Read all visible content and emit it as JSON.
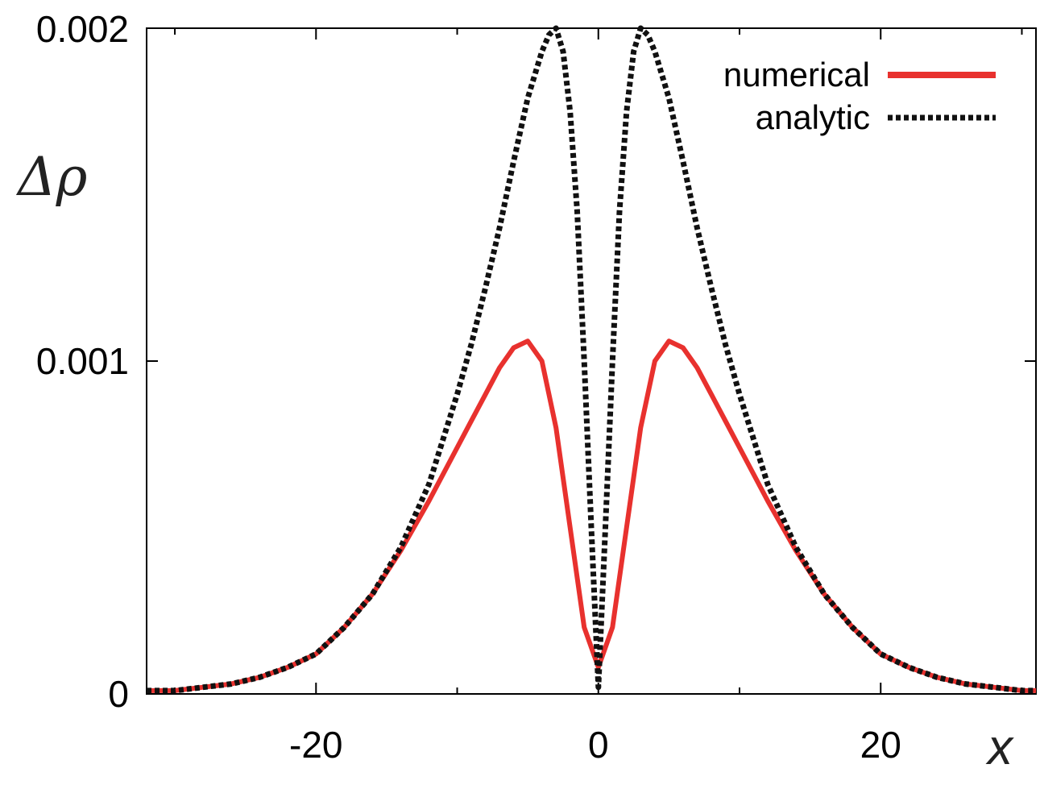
{
  "chart_data": {
    "type": "line",
    "xlabel": "x",
    "ylabel": "Δρ",
    "xlim": [
      -32,
      31
    ],
    "ylim": [
      0,
      0.002
    ],
    "xticks": [
      -20,
      0,
      20
    ],
    "xtick_labels": [
      "-20",
      "0",
      "20"
    ],
    "yticks": [
      0,
      0.001,
      0.002
    ],
    "ytick_labels": [
      "0",
      "0.001",
      "0.002"
    ],
    "grid": false,
    "legend_position": "top-right",
    "colors": {
      "numerical": "#e8312e",
      "analytic": "#111111"
    },
    "series": [
      {
        "name": "numerical",
        "style": "solid",
        "x": [
          -32,
          -30,
          -28,
          -26,
          -24,
          -22,
          -20,
          -18,
          -16,
          -14,
          -12,
          -10,
          -9,
          -8,
          -7,
          -6,
          -5,
          -4,
          -3,
          -2,
          -1,
          0,
          1,
          2,
          3,
          4,
          5,
          6,
          7,
          8,
          9,
          10,
          12,
          14,
          16,
          18,
          20,
          22,
          24,
          26,
          28,
          30,
          31
        ],
        "y": [
          1e-05,
          1e-05,
          2e-05,
          3e-05,
          5e-05,
          8e-05,
          0.00012,
          0.0002,
          0.0003,
          0.00043,
          0.00058,
          0.00074,
          0.00082,
          0.0009,
          0.00098,
          0.00104,
          0.00106,
          0.001,
          0.0008,
          0.0005,
          0.0002,
          8e-05,
          0.0002,
          0.0005,
          0.0008,
          0.001,
          0.00106,
          0.00104,
          0.00098,
          0.0009,
          0.00082,
          0.00074,
          0.00058,
          0.00043,
          0.0003,
          0.0002,
          0.00012,
          8e-05,
          5e-05,
          3e-05,
          2e-05,
          1e-05,
          1e-05
        ]
      },
      {
        "name": "analytic",
        "style": "dotted",
        "x": [
          -32,
          -30,
          -28,
          -26,
          -24,
          -22,
          -20,
          -18,
          -16,
          -14,
          -12,
          -10,
          -9,
          -8,
          -7,
          -6,
          -5,
          -4,
          -3.5,
          -3,
          -2.5,
          -2,
          -1.5,
          -1,
          -0.5,
          0,
          0.5,
          1,
          1.5,
          2,
          2.5,
          3,
          3.5,
          4,
          5,
          6,
          7,
          8,
          9,
          10,
          12,
          14,
          16,
          18,
          20,
          22,
          24,
          26,
          28,
          30,
          31
        ],
        "y": [
          1e-05,
          1e-05,
          2e-05,
          3e-05,
          5e-05,
          8e-05,
          0.00012,
          0.0002,
          0.0003,
          0.00044,
          0.00063,
          0.0009,
          0.00105,
          0.00122,
          0.0014,
          0.0016,
          0.00179,
          0.00193,
          0.00198,
          0.002,
          0.00193,
          0.00175,
          0.00145,
          0.001,
          0.0005,
          2e-05,
          0.0005,
          0.001,
          0.00145,
          0.00175,
          0.00193,
          0.002,
          0.00198,
          0.00193,
          0.00179,
          0.0016,
          0.0014,
          0.00122,
          0.00105,
          0.0009,
          0.00063,
          0.00044,
          0.0003,
          0.0002,
          0.00012,
          8e-05,
          5e-05,
          3e-05,
          2e-05,
          1e-05,
          1e-05
        ]
      }
    ]
  }
}
